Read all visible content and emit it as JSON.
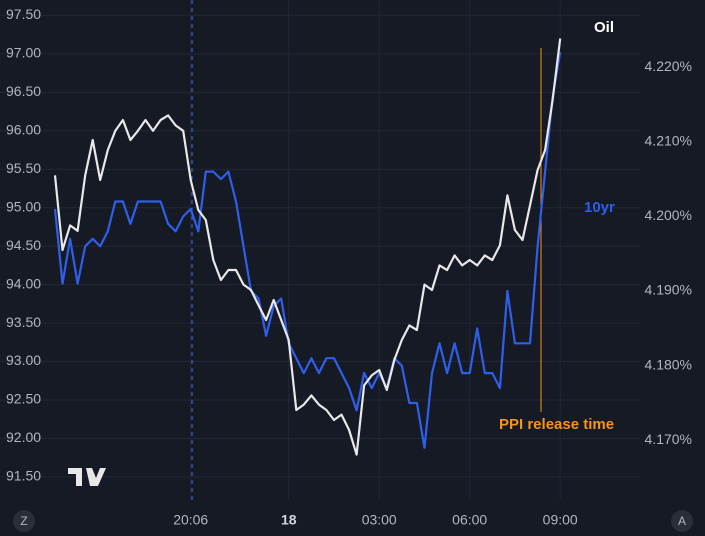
{
  "chart_data": {
    "type": "line",
    "categories": [
      null,
      null,
      null,
      null,
      null,
      null,
      null,
      null,
      null,
      null,
      null,
      null,
      null,
      null,
      null,
      null,
      null,
      null,
      "20:06",
      null,
      null,
      null,
      null,
      null,
      null,
      null,
      null,
      null,
      null,
      null,
      null,
      "18",
      null,
      null,
      null,
      null,
      null,
      null,
      null,
      null,
      null,
      null,
      null,
      "03:00",
      null,
      null,
      null,
      null,
      null,
      null,
      null,
      null,
      null,
      null,
      null,
      "06:00",
      null,
      null,
      null,
      null,
      null,
      null,
      null,
      null,
      null,
      null,
      null,
      "09:00"
    ],
    "series": [
      {
        "name": "Oil",
        "color": "#e8e8e8",
        "axis": "y",
        "values": [
          95.42,
          94.45,
          94.77,
          94.7,
          95.42,
          95.88,
          95.36,
          95.75,
          96.0,
          96.14,
          95.88,
          96.0,
          96.14,
          96.0,
          96.14,
          96.2,
          96.07,
          96.0,
          95.36,
          94.97,
          94.84,
          94.32,
          94.06,
          94.19,
          94.19,
          94.0,
          93.93,
          93.73,
          93.54,
          93.8,
          93.54,
          93.28,
          92.37,
          92.44,
          92.56,
          92.44,
          92.37,
          92.24,
          92.31,
          92.11,
          91.79,
          92.69,
          92.82,
          92.89,
          92.63,
          93.02,
          93.28,
          93.47,
          93.41,
          94.0,
          93.93,
          94.25,
          94.19,
          94.38,
          94.25,
          94.32,
          94.25,
          94.38,
          94.32,
          94.51,
          95.16,
          94.71,
          94.58,
          95.03,
          95.49,
          95.75,
          96.4,
          97.2
        ]
      },
      {
        "name": "10yr",
        "color": "#2f5fe8",
        "axis": "y2",
        "values": [
          4.201,
          4.191,
          4.197,
          4.191,
          4.196,
          4.197,
          4.196,
          4.198,
          4.202,
          4.202,
          4.199,
          4.202,
          4.202,
          4.202,
          4.202,
          4.199,
          4.198,
          4.2,
          4.201,
          4.198,
          4.206,
          4.206,
          4.205,
          4.206,
          4.202,
          4.196,
          4.19,
          4.189,
          4.184,
          4.188,
          4.189,
          4.183,
          4.181,
          4.179,
          4.181,
          4.179,
          4.181,
          4.181,
          4.179,
          4.177,
          4.174,
          4.179,
          4.177,
          4.179,
          4.177,
          4.181,
          4.18,
          4.175,
          4.175,
          4.169,
          4.179,
          4.183,
          4.179,
          4.183,
          4.179,
          4.179,
          4.185,
          4.179,
          4.179,
          4.177,
          4.19,
          4.183,
          4.183,
          4.183,
          4.196,
          4.206,
          4.216,
          4.222
        ]
      }
    ],
    "ylim": [
      91.2,
      97.7
    ],
    "yticks": [
      {
        "value": 91.5,
        "label": "91.50"
      },
      {
        "value": 92,
        "label": "92.00"
      },
      {
        "value": 92.5,
        "label": "92.50"
      },
      {
        "value": 93,
        "label": "93.00"
      },
      {
        "value": 93.5,
        "label": "93.50"
      },
      {
        "value": 94,
        "label": "94.00"
      },
      {
        "value": 94.5,
        "label": "94.50"
      },
      {
        "value": 95,
        "label": "95.00"
      },
      {
        "value": 95.5,
        "label": "95.50"
      },
      {
        "value": 96,
        "label": "96.00"
      },
      {
        "value": 96.5,
        "label": "96.50"
      },
      {
        "value": 97,
        "label": "97.00"
      },
      {
        "value": 97.5,
        "label": "97.50"
      }
    ],
    "y2lim": [
      4.162,
      4.229
    ],
    "y2ticks": [
      {
        "value": 4.17,
        "label": "4.170%"
      },
      {
        "value": 4.18,
        "label": "4.180%"
      },
      {
        "value": 4.19,
        "label": "4.190%"
      },
      {
        "value": 4.2,
        "label": "4.200%"
      },
      {
        "value": 4.21,
        "label": "4.210%"
      },
      {
        "value": 4.22,
        "label": "4.220%"
      }
    ],
    "grid": true,
    "annotations": [
      "PPI release time"
    ]
  },
  "ui": {
    "left_button": "Z",
    "right_button": "A"
  }
}
